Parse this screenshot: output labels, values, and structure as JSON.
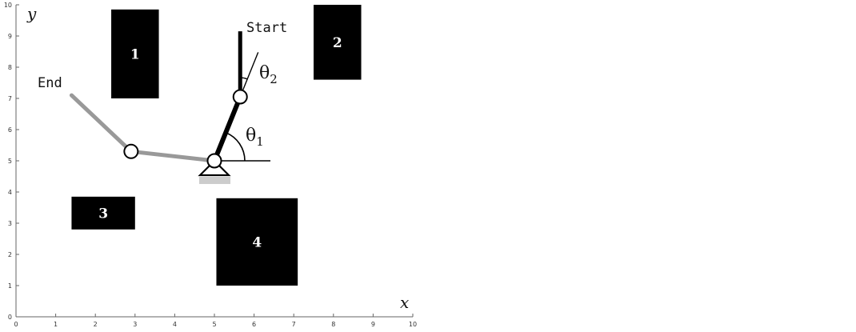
{
  "axes": {
    "x_label": "x",
    "y_label": "y",
    "xlim": [
      0,
      10
    ],
    "ylim": [
      0,
      10
    ],
    "x_ticks": [
      "0",
      "1",
      "2",
      "3",
      "4",
      "5",
      "6",
      "7",
      "8",
      "9",
      "10"
    ],
    "y_ticks": [
      "0",
      "1",
      "2",
      "3",
      "4",
      "5",
      "6",
      "7",
      "8",
      "9",
      "10"
    ]
  },
  "obstacles": [
    {
      "label": "1",
      "x0": 2.4,
      "x1": 3.6,
      "y0": 7.0,
      "y1": 9.85
    },
    {
      "label": "2",
      "x0": 7.5,
      "x1": 8.7,
      "y0": 7.6,
      "y1": 10.0
    },
    {
      "label": "3",
      "x0": 1.4,
      "x1": 3.0,
      "y0": 2.8,
      "y1": 3.85
    },
    {
      "label": "4",
      "x0": 5.05,
      "x1": 7.1,
      "y0": 1.0,
      "y1": 3.8
    }
  ],
  "arm": {
    "base": [
      5.0,
      5.0
    ],
    "start": {
      "label": "Start",
      "joint": [
        5.65,
        7.05
      ],
      "tip": [
        5.65,
        9.15
      ],
      "color": "#000000"
    },
    "end": {
      "label": "End",
      "joint": [
        2.9,
        5.3
      ],
      "tip": [
        1.4,
        7.1
      ],
      "color": "#999999"
    },
    "base_support_color": "#cccccc"
  },
  "angles": {
    "theta1": {
      "symbol": "θ",
      "subscript": "1"
    },
    "theta2": {
      "symbol": "θ",
      "subscript": "2"
    }
  },
  "colors": {
    "obstacle": "#000000",
    "start_arm": "#000000",
    "end_arm": "#999999",
    "axis": "#666666"
  }
}
